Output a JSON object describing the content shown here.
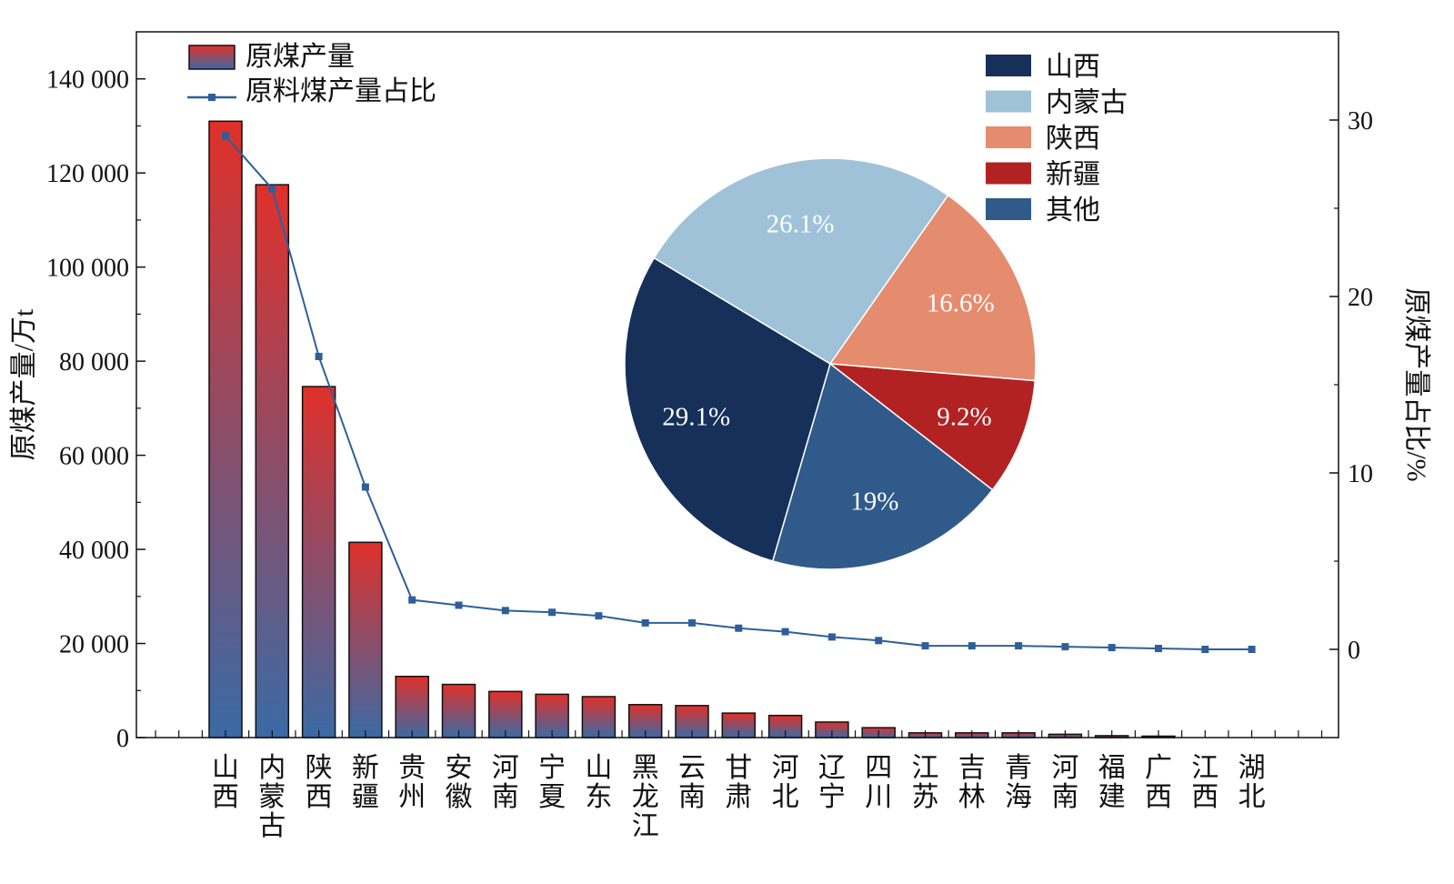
{
  "chart_data": [
    {
      "type": "bar",
      "categories": [
        "山西",
        "内蒙古",
        "陕西",
        "新疆",
        "贵州",
        "安徽",
        "河南",
        "宁夏",
        "山东",
        "黑龙江",
        "云南",
        "甘肃",
        "河北",
        "辽宁",
        "四川",
        "江苏",
        "吉林",
        "青海",
        "河南",
        "福建",
        "广西",
        "江西",
        "湖北"
      ],
      "series": [
        {
          "name": "原煤产量",
          "axis": "left",
          "type": "bar",
          "values": [
            131000,
            117500,
            74600,
            41500,
            13000,
            11300,
            9800,
            9200,
            8700,
            7000,
            6800,
            5200,
            4700,
            3300,
            2100,
            1000,
            1000,
            1000,
            700,
            400,
            300,
            0,
            0
          ],
          "color_top": "#e0302a",
          "color_bottom": "#3a6aa5"
        },
        {
          "name": "原料煤产量占比",
          "axis": "right",
          "type": "line",
          "values": [
            29.1,
            26.1,
            16.6,
            9.2,
            2.8,
            2.5,
            2.2,
            2.1,
            1.9,
            1.5,
            1.5,
            1.2,
            1.0,
            0.7,
            0.5,
            0.2,
            0.2,
            0.2,
            0.15,
            0.1,
            0.05,
            0.0,
            0.0
          ],
          "color": "#2f5f9a"
        }
      ],
      "ylabel": "原煤产量/万t",
      "ylabel_right": "原煤产量占比/%",
      "ylim": [
        0,
        150000
      ],
      "yticks": [
        0,
        20000,
        40000,
        60000,
        80000,
        100000,
        120000,
        140000
      ],
      "ytick_labels": [
        "0",
        "20 000",
        "40 000",
        "60 000",
        "80 000",
        "100 000",
        "120 000",
        "140 000"
      ],
      "ylim_right": [
        -5,
        35
      ],
      "yticks_right": [
        0,
        10,
        20,
        30
      ],
      "ytick_labels_right": [
        "0",
        "10",
        "20",
        "30"
      ],
      "grid": false,
      "legend": "top-left"
    },
    {
      "type": "pie",
      "slices": [
        {
          "label": "山西",
          "value": 29.1,
          "text": "29.1%",
          "color": "#16305a",
          "text_color": "#ffffff"
        },
        {
          "label": "内蒙古",
          "value": 26.1,
          "text": "26.1%",
          "color": "#9fc2d9",
          "text_color": "#ffffff"
        },
        {
          "label": "陕西",
          "value": 16.6,
          "text": "16.6%",
          "color": "#e58b6e",
          "text_color": "#ffffff"
        },
        {
          "label": "新疆",
          "value": 9.2,
          "text": "9.2%",
          "color": "#b22222",
          "text_color": "#ffffff"
        },
        {
          "label": "其他",
          "value": 19.0,
          "text": "19%",
          "color": "#2f5a8a",
          "text_color": "#ffffff"
        }
      ],
      "legend": "top-right"
    }
  ]
}
